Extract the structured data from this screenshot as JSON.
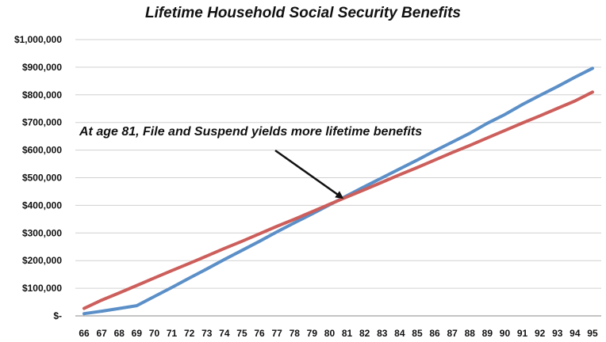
{
  "chart_data": {
    "type": "line",
    "title": "Lifetime Household Social Security Benefits",
    "xlabel": "",
    "ylabel": "",
    "x": [
      66,
      67,
      68,
      69,
      70,
      71,
      72,
      73,
      74,
      75,
      76,
      77,
      78,
      79,
      80,
      81,
      82,
      83,
      84,
      85,
      86,
      87,
      88,
      89,
      90,
      91,
      92,
      93,
      94,
      95
    ],
    "ylim": [
      0,
      1000000
    ],
    "y_ticks": [
      "$-",
      "$100,000",
      "$200,000",
      "$300,000",
      "$400,000",
      "$500,000",
      "$600,000",
      "$700,000",
      "$800,000",
      "$900,000",
      "$1,000,000"
    ],
    "x_ticks": [
      "66",
      "67",
      "68",
      "69",
      "70",
      "71",
      "72",
      "73",
      "74",
      "75",
      "76",
      "77",
      "78",
      "79",
      "80",
      "81",
      "82",
      "83",
      "84",
      "85",
      "86",
      "87",
      "88",
      "89",
      "90",
      "91",
      "92",
      "93",
      "94",
      "95"
    ],
    "grid": true,
    "series": [
      {
        "color": "#5b8fc7",
        "values": [
          8000,
          17000,
          27000,
          37000,
          70000,
          103000,
          137000,
          170000,
          204000,
          237000,
          270000,
          304000,
          337000,
          369000,
          402000,
          435000,
          468000,
          500000,
          532000,
          564000,
          597000,
          629000,
          661000,
          697000,
          729000,
          765000,
          798000,
          830000,
          864000,
          896000
        ]
      },
      {
        "color": "#cc5e5b",
        "values": [
          27000,
          57000,
          83000,
          110000,
          137000,
          164000,
          190000,
          217000,
          244000,
          270000,
          297000,
          324000,
          350000,
          377000,
          404000,
          431000,
          457000,
          484000,
          511000,
          537000,
          564000,
          591000,
          617000,
          644000,
          671000,
          698000,
          724000,
          751000,
          778000,
          810000
        ]
      }
    ],
    "annotation": {
      "text": "At age 81, File and Suspend yields more lifetime benefits",
      "target_x": 81,
      "target_y": 433000
    }
  }
}
